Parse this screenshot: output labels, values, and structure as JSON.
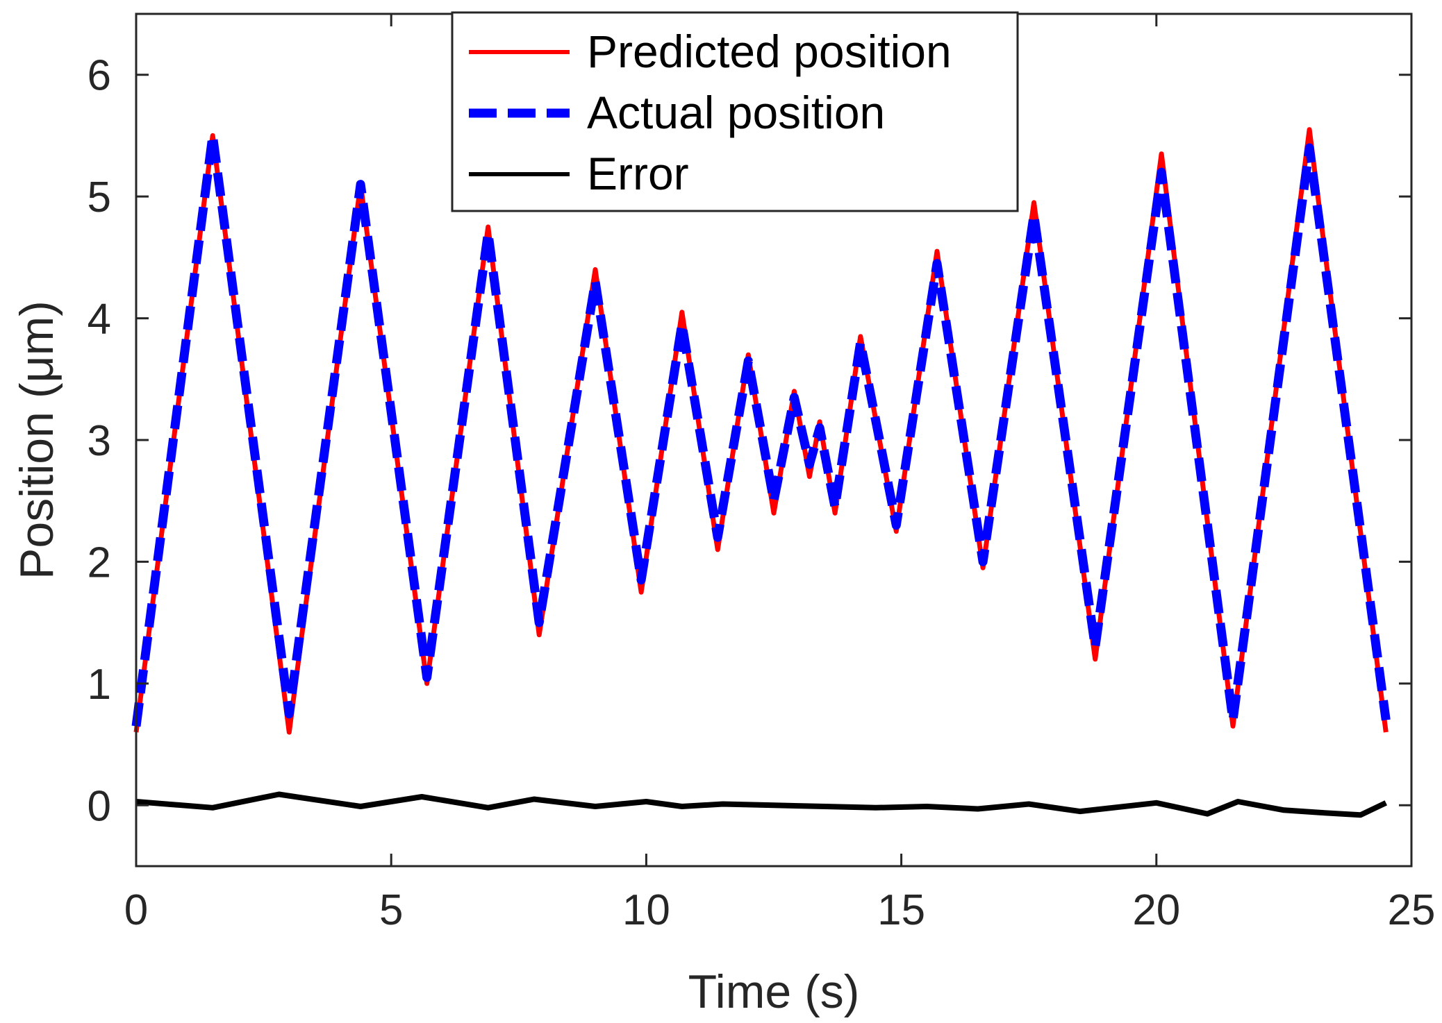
{
  "chart_data": {
    "type": "line",
    "title": "",
    "xlabel": "Time (s)",
    "ylabel": "Position (μm)",
    "xlim": [
      0,
      25
    ],
    "ylim": [
      -0.5,
      6.5
    ],
    "xticks": [
      0,
      5,
      10,
      15,
      20,
      25
    ],
    "xtick_labels": [
      "0",
      "5",
      "10",
      "15",
      "20",
      "25"
    ],
    "yticks": [
      0,
      1,
      2,
      3,
      4,
      5,
      6
    ],
    "ytick_labels": [
      "0",
      "1",
      "2",
      "3",
      "4",
      "5",
      "6"
    ],
    "grid": false,
    "legend_position": "top-center",
    "series": [
      {
        "name": "Predicted position",
        "color": "#ff0000",
        "style": "solid",
        "x": [
          0,
          1.5,
          3.0,
          4.4,
          5.7,
          6.9,
          7.9,
          9.0,
          9.9,
          10.7,
          11.4,
          12.0,
          12.5,
          12.9,
          13.2,
          13.4,
          13.7,
          14.2,
          14.9,
          15.7,
          16.6,
          17.6,
          18.8,
          20.1,
          21.5,
          23.0,
          24.5
        ],
        "y": [
          0.6,
          5.5,
          0.6,
          5.1,
          1.0,
          4.75,
          1.4,
          4.4,
          1.75,
          4.05,
          2.1,
          3.7,
          2.4,
          3.4,
          2.7,
          3.15,
          2.4,
          3.85,
          2.25,
          4.55,
          1.95,
          4.95,
          1.2,
          5.35,
          0.65,
          5.55,
          0.6
        ]
      },
      {
        "name": "Actual position",
        "color": "#0000ff",
        "style": "dashed",
        "x": [
          0,
          1.5,
          3.0,
          4.4,
          5.7,
          6.9,
          7.9,
          9.0,
          9.9,
          10.7,
          11.4,
          12.0,
          12.5,
          12.9,
          13.2,
          13.4,
          13.7,
          14.2,
          14.9,
          15.7,
          16.6,
          17.6,
          18.8,
          20.1,
          21.5,
          23.0,
          24.5
        ],
        "y": [
          0.65,
          5.5,
          0.75,
          5.1,
          1.05,
          4.7,
          1.5,
          4.3,
          1.85,
          3.95,
          2.2,
          3.65,
          2.5,
          3.35,
          2.8,
          3.1,
          2.45,
          3.8,
          2.3,
          4.45,
          2.0,
          4.85,
          1.3,
          5.2,
          0.7,
          5.4,
          0.7
        ]
      },
      {
        "name": "Error",
        "color": "#000000",
        "style": "solid",
        "x": [
          0,
          1.5,
          2.8,
          4.4,
          5.6,
          6.9,
          7.8,
          9.0,
          10.0,
          10.7,
          11.5,
          12.5,
          13.5,
          14.5,
          15.5,
          16.5,
          17.5,
          18.5,
          20.0,
          21.0,
          21.6,
          22.5,
          23.2,
          24.0,
          24.5
        ],
        "y": [
          0.03,
          -0.02,
          0.09,
          -0.01,
          0.07,
          -0.02,
          0.05,
          -0.01,
          0.03,
          -0.01,
          0.01,
          0.0,
          -0.01,
          -0.02,
          -0.01,
          -0.03,
          0.01,
          -0.05,
          0.02,
          -0.07,
          0.03,
          -0.04,
          -0.06,
          -0.08,
          0.02
        ]
      }
    ]
  }
}
